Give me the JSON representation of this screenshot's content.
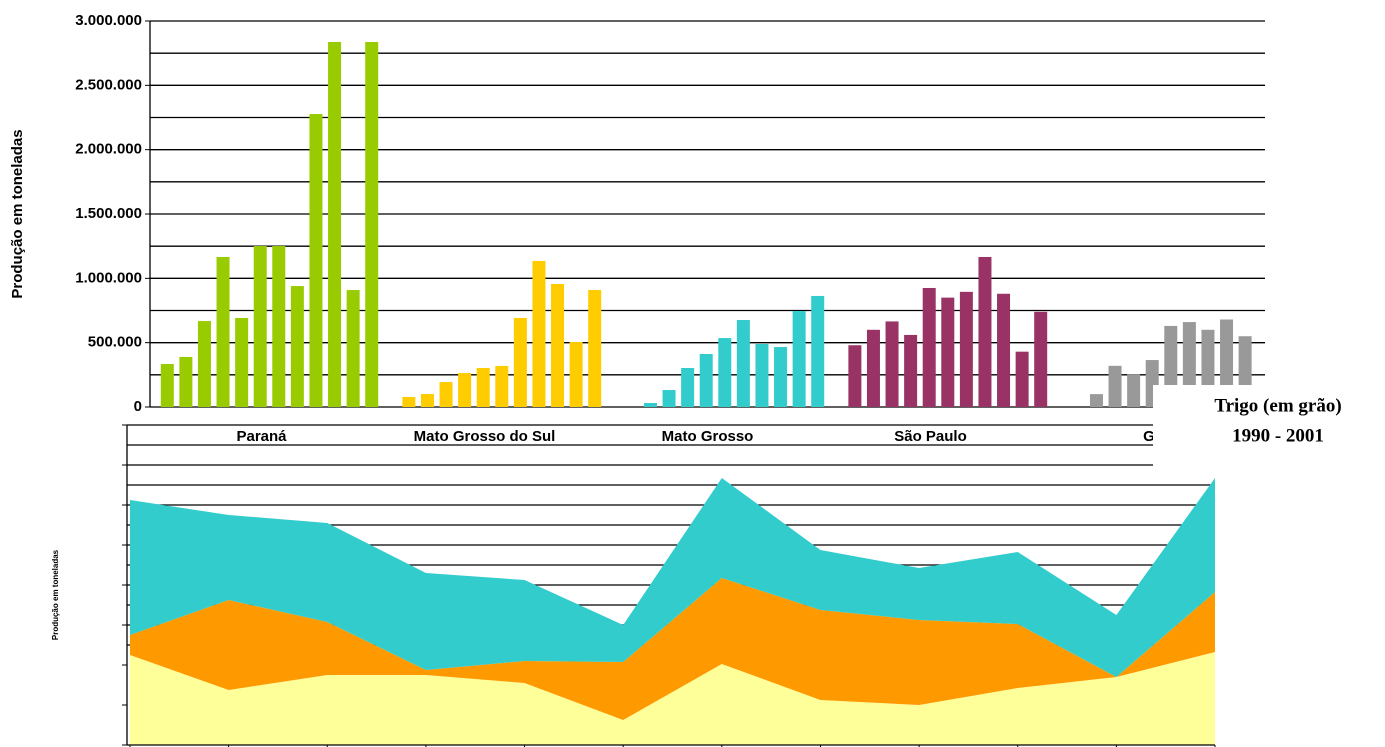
{
  "chart_data": [
    {
      "type": "bar",
      "title": "Trigo  (em grão)",
      "subtitle": "1990 - 2001",
      "y_label": "Produção em toneladas",
      "ylim": [
        0,
        3000000
      ],
      "yticks": [
        0,
        {
          "value": 500000,
          "label": "500.000"
        },
        {
          "value": 1000000,
          "label": "1.000.000"
        },
        {
          "value": 1500000,
          "label": "1.500.000"
        },
        {
          "value": 2000000,
          "label": "2.000.000"
        },
        {
          "value": 2500000,
          "label": "2.500.000"
        },
        {
          "value": 3000000,
          "label": "3.000.000"
        }
      ],
      "ygrid": [
        0,
        250000,
        500000,
        750000,
        1000000,
        1250000,
        1500000,
        1750000,
        2000000,
        2250000,
        2500000,
        2750000,
        3000000
      ],
      "groups": [
        {
          "category": "Paraná",
          "color": "#99cc00",
          "values": [
            334000,
            389000,
            668000,
            1166000,
            692000,
            1251000,
            1251000,
            940000,
            2277000,
            2837000,
            909000,
            2837000
          ]
        },
        {
          "category": "Mato Grosso do Sul",
          "color": "#ffcc00",
          "values": [
            null,
            78000,
            101000,
            194000,
            264000,
            303000,
            319000,
            692000,
            1135000,
            956000,
            505000,
            909000
          ]
        },
        {
          "category": "Mato Grosso",
          "color": "#33cccc",
          "values": [
            null,
            null,
            31000,
            132000,
            303000,
            412000,
            536000,
            676000,
            490000,
            466000,
            746000,
            863000
          ]
        },
        {
          "category": "São Paulo",
          "color": "#993366",
          "values": [
            null,
            480000,
            600000,
            665000,
            560000,
            925000,
            850000,
            895000,
            1166000,
            880000,
            430000,
            740000
          ]
        },
        {
          "category": "Go",
          "color": "#999999",
          "values": [
            null,
            null,
            100000,
            320000,
            255000,
            365000,
            630000,
            660000,
            600000,
            680000,
            550000,
            null
          ]
        }
      ]
    },
    {
      "type": "area",
      "y_label": "Produção em toneladas",
      "ylim": [
        0,
        16
      ],
      "ytick_marks": [
        0,
        2,
        4,
        6,
        8,
        10,
        12,
        14,
        16
      ],
      "ygrid": [
        5,
        6,
        7,
        8,
        9,
        10,
        11,
        12,
        13,
        14,
        15,
        16
      ],
      "series": [
        {
          "color": "#ffff99",
          "values": [
            4.5,
            2.75,
            3.5,
            3.5,
            3.1,
            1.25,
            4.05,
            2.25,
            2.0,
            2.85,
            3.4,
            4.65
          ]
        },
        {
          "color": "#ff9900",
          "values": [
            1.0,
            4.5,
            2.65,
            0.25,
            1.1,
            2.9,
            4.3,
            4.5,
            4.25,
            3.2,
            0,
            3.0
          ]
        },
        {
          "color": "#33cccc",
          "values": [
            6.75,
            4.25,
            4.95,
            4.85,
            4.05,
            1.85,
            5.0,
            3.0,
            2.6,
            3.6,
            3.1,
            5.7
          ]
        }
      ]
    }
  ]
}
